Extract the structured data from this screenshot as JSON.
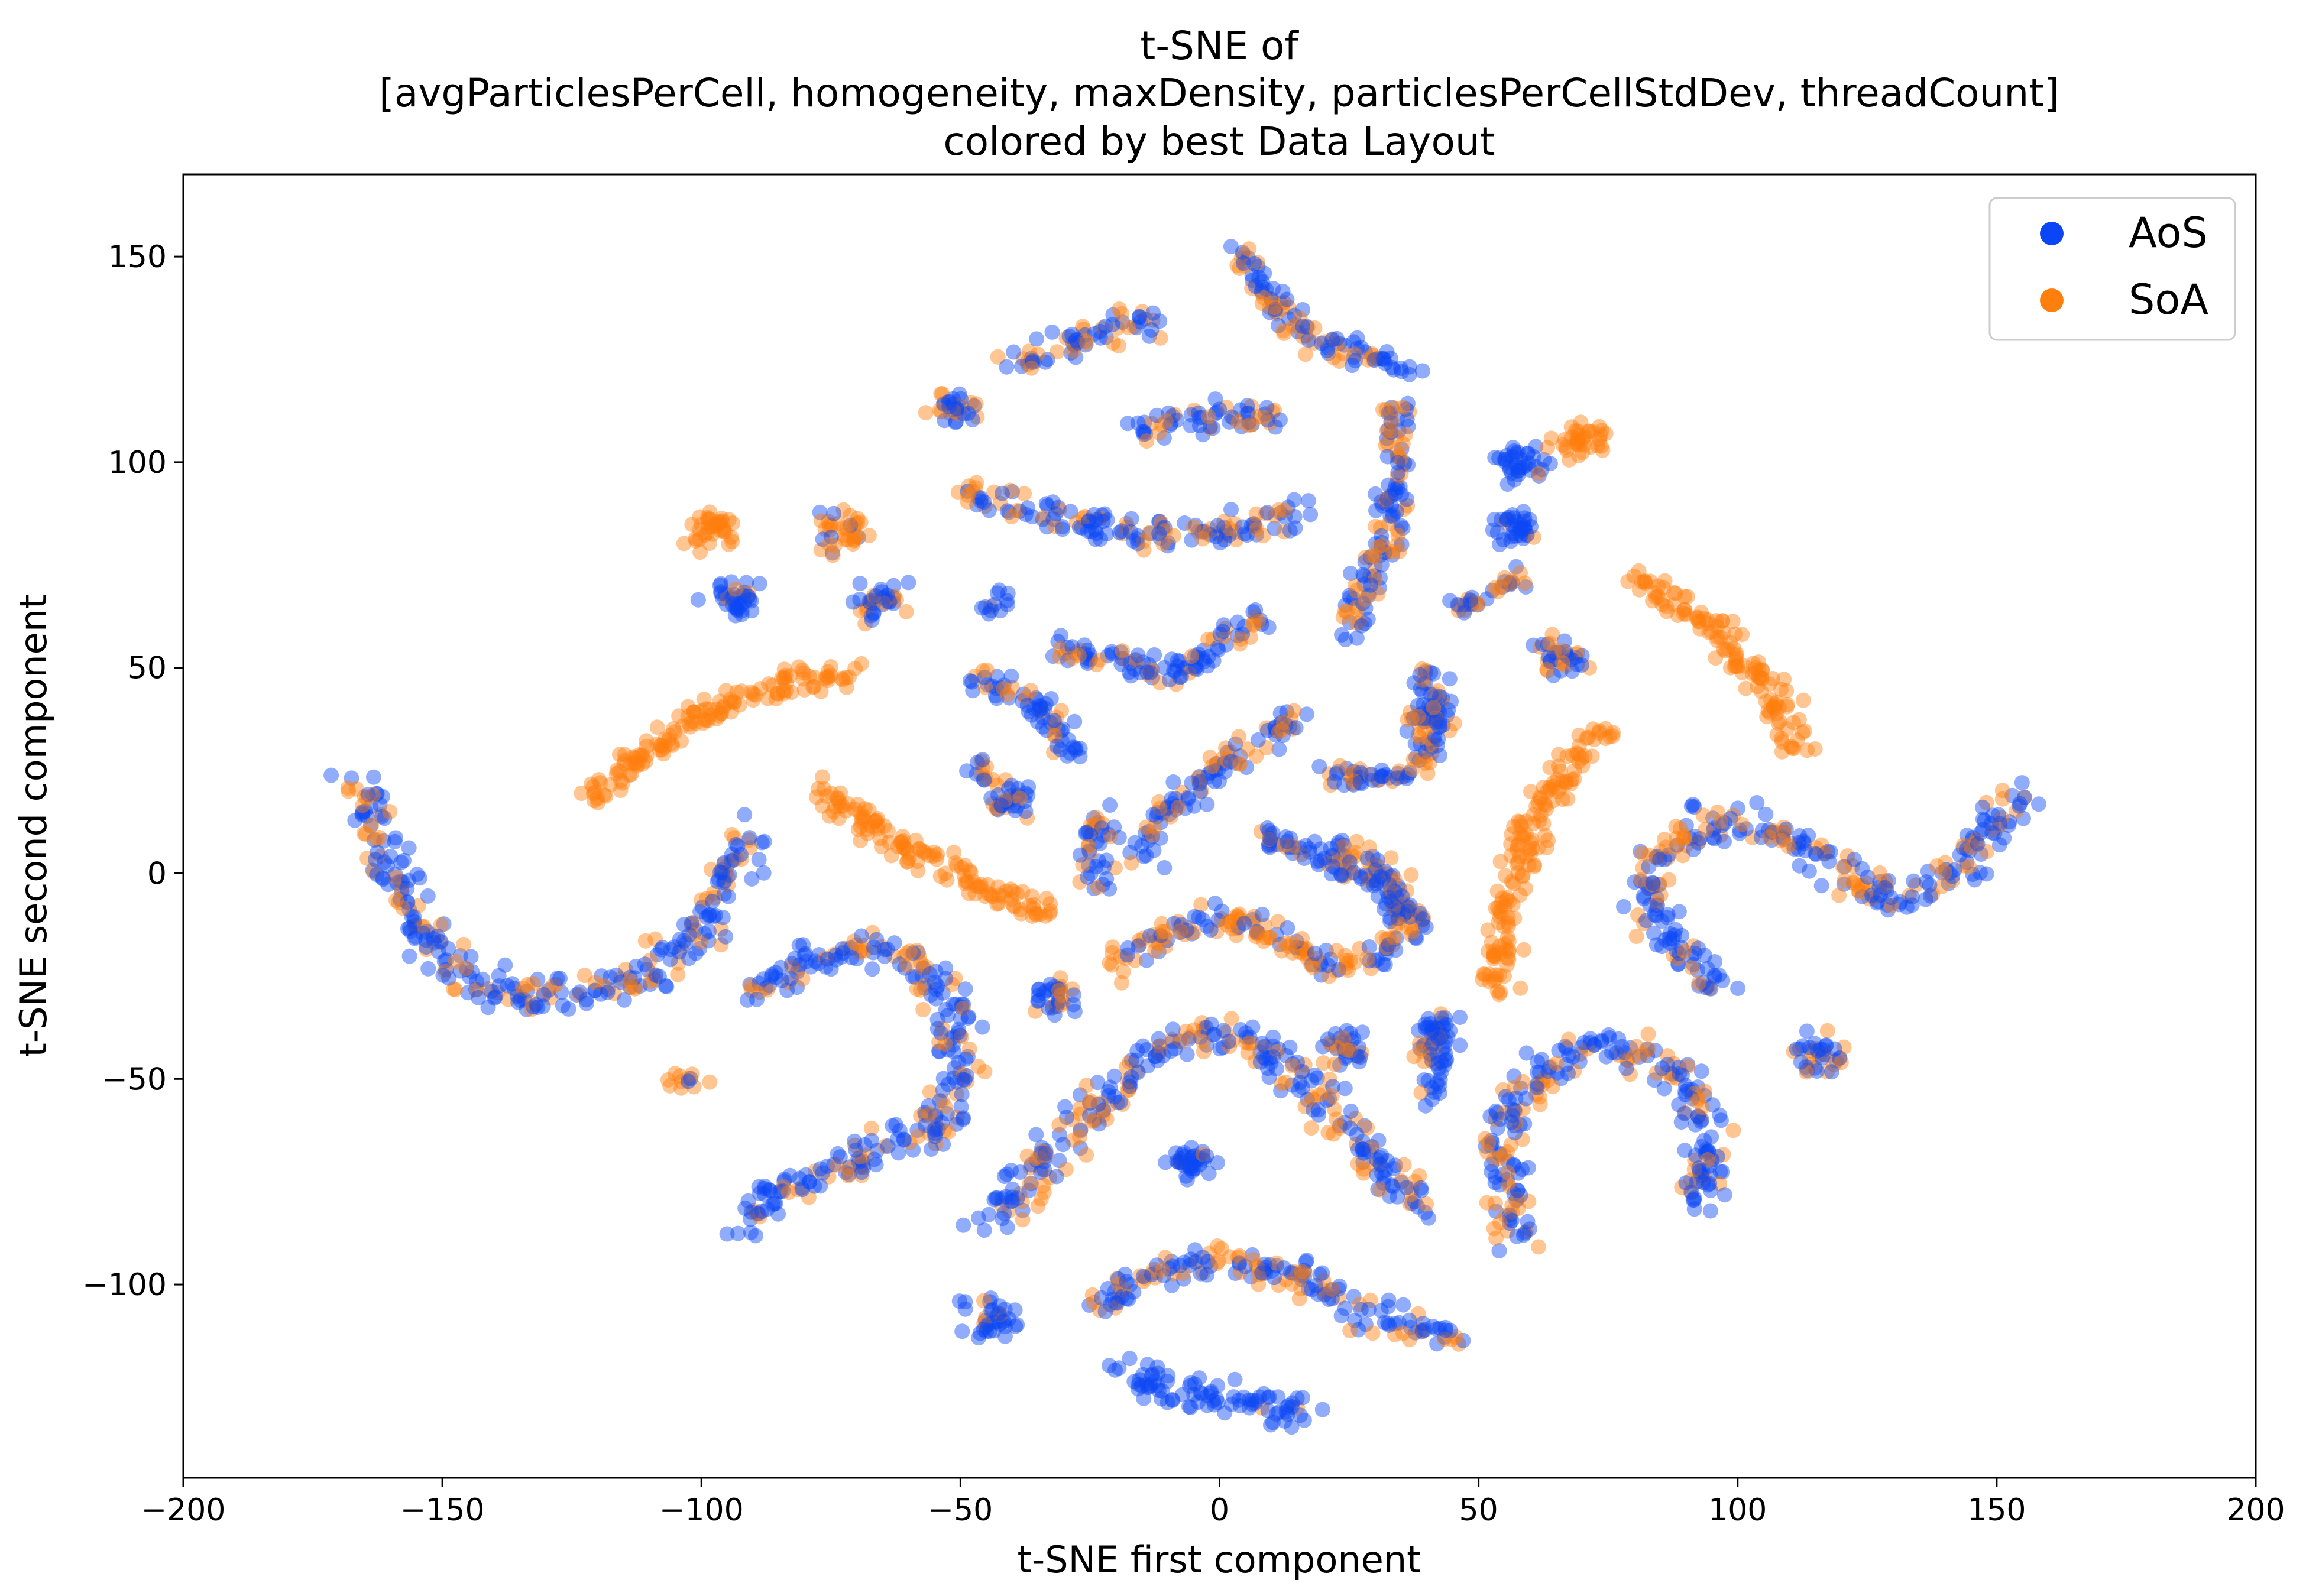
{
  "chart_data": {
    "type": "scatter",
    "title_lines": [
      "t-SNE of",
      "[avgParticlesPerCell, homogeneity, maxDensity, particlesPerCellStdDev, threadCount]",
      "colored by best Data Layout"
    ],
    "xlabel": "t-SNE first component",
    "ylabel": "t-SNE second component",
    "xlim": [
      -200,
      200
    ],
    "ylim": [
      -147,
      170
    ],
    "xticks": [
      -200,
      -150,
      -100,
      -50,
      0,
      50,
      100,
      150,
      200
    ],
    "xtick_labels": [
      "−200",
      "−150",
      "−100",
      "−50",
      "0",
      "50",
      "100",
      "150",
      "200"
    ],
    "yticks": [
      -100,
      -50,
      0,
      50,
      100,
      150
    ],
    "ytick_labels": [
      "−100",
      "−50",
      "0",
      "50",
      "100",
      "150"
    ],
    "legend": {
      "position": "top-right",
      "entries": [
        {
          "name": "AoS",
          "color": "#0a46f5"
        },
        {
          "name": "SoA",
          "color": "#ff7f0e"
        }
      ]
    },
    "marker_alpha": 0.45,
    "series": [
      {
        "name": "AoS",
        "color": "#0a46f5"
      },
      {
        "name": "SoA",
        "color": "#ff7f0e"
      }
    ],
    "clusters": [
      {
        "path": [
          [
            -167,
            22
          ],
          [
            -162,
            10
          ],
          [
            -158,
            -5
          ],
          [
            -152,
            -18
          ],
          [
            -143,
            -27
          ],
          [
            -133,
            -30
          ],
          [
            -123,
            -30
          ],
          [
            -113,
            -27
          ],
          [
            -103,
            -18
          ],
          [
            -96,
            -5
          ],
          [
            -91,
            10
          ]
        ],
        "aos_share": 0.7,
        "width": 4
      },
      {
        "path": [
          [
            -123,
            17
          ],
          [
            -112,
            28
          ],
          [
            -100,
            38
          ],
          [
            -88,
            45
          ],
          [
            -76,
            48
          ],
          [
            -70,
            48
          ]
        ],
        "aos_share": 0.0,
        "width": 3
      },
      {
        "path": [
          [
            -78,
            22
          ],
          [
            -68,
            12
          ],
          [
            -58,
            5
          ],
          [
            -48,
            -2
          ],
          [
            -38,
            -7
          ],
          [
            -32,
            -10
          ]
        ],
        "aos_share": 0.0,
        "width": 3
      },
      {
        "path": [
          [
            -90,
            -30
          ],
          [
            -80,
            -22
          ],
          [
            -70,
            -18
          ],
          [
            -60,
            -20
          ],
          [
            -52,
            -30
          ],
          [
            -50,
            -48
          ],
          [
            -55,
            -62
          ],
          [
            -70,
            -70
          ],
          [
            -85,
            -78
          ],
          [
            -92,
            -87
          ]
        ],
        "aos_share": 0.7,
        "width": 4
      },
      {
        "path": [
          [
            -48,
            93
          ],
          [
            -35,
            88
          ],
          [
            -22,
            84
          ],
          [
            -8,
            82
          ],
          [
            8,
            84
          ],
          [
            15,
            88
          ]
        ],
        "aos_share": 0.6,
        "width": 3.5
      },
      {
        "path": [
          [
            -40,
            125
          ],
          [
            -32,
            128
          ],
          [
            -22,
            132
          ],
          [
            -12,
            134
          ]
        ],
        "aos_share": 0.6,
        "width": 3.5
      },
      {
        "path": [
          [
            -15,
            108
          ],
          [
            -5,
            111
          ],
          [
            5,
            112
          ],
          [
            12,
            110
          ]
        ],
        "aos_share": 0.7,
        "width": 3
      },
      {
        "path": [
          [
            3,
            152
          ],
          [
            10,
            140
          ],
          [
            18,
            130
          ],
          [
            30,
            125
          ],
          [
            36,
            122
          ]
        ],
        "aos_share": 0.6,
        "width": 3
      },
      {
        "path": [
          [
            33,
            115
          ],
          [
            35,
            100
          ],
          [
            33,
            85
          ],
          [
            28,
            70
          ],
          [
            25,
            58
          ]
        ],
        "aos_share": 0.6,
        "width": 3
      },
      {
        "path": [
          [
            -32,
            55
          ],
          [
            -20,
            52
          ],
          [
            -10,
            48
          ],
          [
            0,
            55
          ],
          [
            8,
            63
          ]
        ],
        "aos_share": 0.7,
        "width": 3
      },
      {
        "path": [
          [
            -48,
            48
          ],
          [
            -40,
            44
          ],
          [
            -32,
            38
          ],
          [
            -28,
            28
          ]
        ],
        "aos_share": 0.7,
        "width": 3
      },
      {
        "path": [
          [
            -15,
            5
          ],
          [
            -10,
            15
          ],
          [
            -5,
            22
          ],
          [
            5,
            30
          ],
          [
            15,
            38
          ]
        ],
        "aos_share": 0.7,
        "width": 3
      },
      {
        "path": [
          [
            -20,
            -22
          ],
          [
            -10,
            -15
          ],
          [
            0,
            -10
          ],
          [
            10,
            -15
          ],
          [
            20,
            -22
          ],
          [
            30,
            -20
          ],
          [
            38,
            -12
          ],
          [
            32,
            0
          ],
          [
            22,
            8
          ]
        ],
        "aos_share": 0.35,
        "width": 3
      },
      {
        "path": [
          [
            7,
            10
          ],
          [
            18,
            5
          ],
          [
            30,
            -2
          ],
          [
            37,
            -12
          ]
        ],
        "aos_share": 0.7,
        "width": 3
      },
      {
        "path": [
          [
            53,
            -28
          ],
          [
            55,
            -10
          ],
          [
            58,
            5
          ],
          [
            63,
            18
          ],
          [
            70,
            30
          ],
          [
            75,
            35
          ]
        ],
        "aos_share": 0.0,
        "width": 3
      },
      {
        "path": [
          [
            80,
            72
          ],
          [
            90,
            65
          ],
          [
            100,
            55
          ],
          [
            108,
            42
          ],
          [
            112,
            30
          ]
        ],
        "aos_share": 0.0,
        "width": 3
      },
      {
        "path": [
          [
            97,
            -28
          ],
          [
            88,
            -18
          ],
          [
            82,
            -5
          ],
          [
            85,
            5
          ],
          [
            95,
            12
          ],
          [
            108,
            10
          ],
          [
            118,
            2
          ],
          [
            128,
            -5
          ],
          [
            140,
            -2
          ],
          [
            148,
            10
          ],
          [
            155,
            20
          ]
        ],
        "aos_share": 0.65,
        "width": 4
      },
      {
        "path": [
          [
            -45,
            -85
          ],
          [
            -35,
            -72
          ],
          [
            -25,
            -58
          ],
          [
            -12,
            -42
          ],
          [
            0,
            -38
          ],
          [
            12,
            -45
          ],
          [
            22,
            -58
          ],
          [
            32,
            -72
          ],
          [
            40,
            -82
          ]
        ],
        "aos_share": 0.65,
        "width": 4
      },
      {
        "path": [
          [
            -25,
            -105
          ],
          [
            -15,
            -98
          ],
          [
            0,
            -94
          ],
          [
            15,
            -98
          ],
          [
            30,
            -108
          ],
          [
            45,
            -113
          ]
        ],
        "aos_share": 0.6,
        "width": 3.5
      },
      {
        "path": [
          [
            -20,
            -120
          ],
          [
            -10,
            -126
          ],
          [
            0,
            -128
          ],
          [
            10,
            -130
          ],
          [
            18,
            -132
          ]
        ],
        "aos_share": 0.95,
        "width": 3.5
      },
      {
        "path": [
          [
            58,
            -90
          ],
          [
            55,
            -75
          ],
          [
            55,
            -60
          ],
          [
            62,
            -48
          ],
          [
            72,
            -42
          ],
          [
            85,
            -45
          ],
          [
            92,
            -55
          ],
          [
            95,
            -72
          ],
          [
            90,
            -82
          ]
        ],
        "aos_share": 0.65,
        "width": 4
      },
      {
        "path": [
          [
            40,
            -45
          ],
          [
            43,
            -35
          ],
          [
            41,
            -55
          ]
        ],
        "aos_share": 0.7,
        "width": 3
      },
      {
        "path": [
          [
            20,
            25
          ],
          [
            30,
            22
          ],
          [
            38,
            25
          ],
          [
            42,
            35
          ],
          [
            40,
            50
          ]
        ],
        "aos_share": 0.6,
        "width": 3
      },
      {
        "path": [
          [
            45,
            65
          ],
          [
            52,
            68
          ],
          [
            58,
            72
          ]
        ],
        "aos_share": 0.6,
        "width": 2.5
      },
      {
        "path": [
          [
            -22,
            15
          ],
          [
            -25,
            5
          ],
          [
            -23,
            -3
          ]
        ],
        "aos_share": 0.6,
        "width": 3
      },
      {
        "path": [
          [
            -45,
            65
          ],
          [
            -40,
            67
          ]
        ],
        "aos_share": 0.6,
        "width": 2.5
      },
      {
        "path": [
          [
            -42,
            22
          ],
          [
            -47,
            26
          ]
        ],
        "aos_share": 0.6,
        "width": 2.5
      },
      {
        "path": [
          [
            -105,
            -50
          ],
          [
            -100,
            -52
          ]
        ],
        "aos_share": 0.3,
        "width": 2.5
      }
    ],
    "blobs": [
      {
        "center": [
          -98,
          84
        ],
        "radius": 4,
        "aos_share": 0.0
      },
      {
        "center": [
          -94,
          66
        ],
        "radius": 4,
        "aos_share": 0.8
      },
      {
        "center": [
          -73,
          83
        ],
        "radius": 4,
        "aos_share": 0.3
      },
      {
        "center": [
          -66,
          66
        ],
        "radius": 4,
        "aos_share": 0.7
      },
      {
        "center": [
          -51,
          113
        ],
        "radius": 3.5,
        "aos_share": 0.6
      },
      {
        "center": [
          -40,
          18
        ],
        "radius": 3.5,
        "aos_share": 0.7
      },
      {
        "center": [
          -32,
          -30
        ],
        "radius": 3.5,
        "aos_share": 0.6
      },
      {
        "center": [
          -6,
          -70
        ],
        "radius": 4,
        "aos_share": 0.95
      },
      {
        "center": [
          -44,
          -108
        ],
        "radius": 4,
        "aos_share": 0.85
      },
      {
        "center": [
          24,
          -42
        ],
        "radius": 3.5,
        "aos_share": 0.6
      },
      {
        "center": [
          58,
          100
        ],
        "radius": 4,
        "aos_share": 0.95
      },
      {
        "center": [
          57,
          84
        ],
        "radius": 4,
        "aos_share": 0.9
      },
      {
        "center": [
          70,
          106
        ],
        "radius": 4,
        "aos_share": 0.0
      },
      {
        "center": [
          66,
          52
        ],
        "radius": 4,
        "aos_share": 0.6
      },
      {
        "center": [
          116,
          -44
        ],
        "radius": 4,
        "aos_share": 0.6
      },
      {
        "center": [
          40,
          38
        ],
        "radius": 3.5,
        "aos_share": 0.6
      }
    ]
  }
}
